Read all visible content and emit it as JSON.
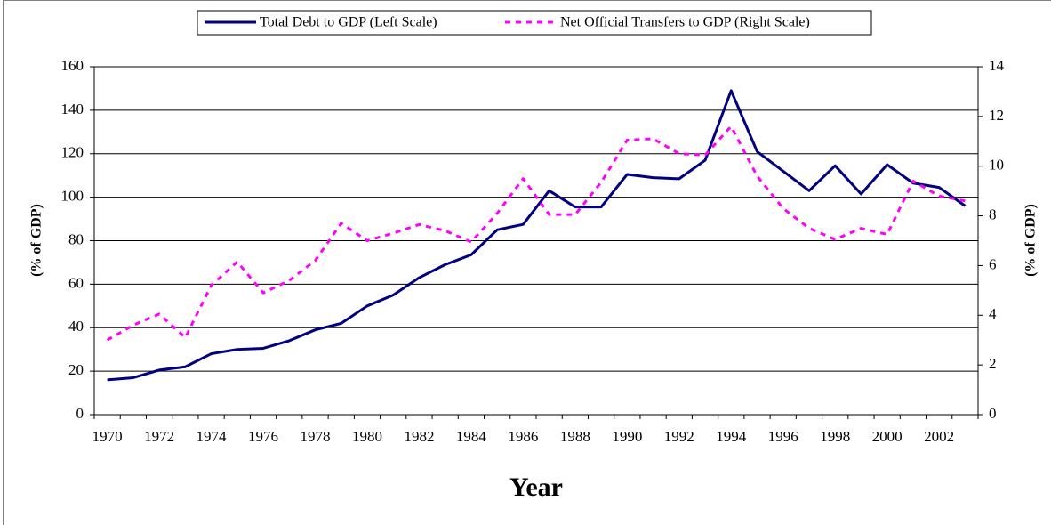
{
  "chart_data": {
    "type": "line",
    "x_label": "Year",
    "y_label": "(% of GDP)",
    "y2_label": "(% of GDP)",
    "categories": [
      "1970",
      null,
      "1972",
      null,
      "1974",
      null,
      "1976",
      null,
      "1978",
      null,
      "1980",
      null,
      "1982",
      null,
      "1984",
      null,
      "1986",
      null,
      "1988",
      null,
      "1990",
      null,
      "1992",
      null,
      "1994",
      null,
      "1996",
      null,
      "1998",
      null,
      "2000",
      null,
      "2002",
      null
    ],
    "series": [
      {
        "name": "Total Debt to GDP (Left Scale)",
        "color": "#000080",
        "dash": false,
        "values": [
          16,
          17,
          20.5,
          22,
          28,
          30,
          30.5,
          34,
          39,
          42,
          50,
          55,
          63,
          69,
          73.5,
          85,
          87.5,
          103,
          95.5,
          95.5,
          110.5,
          109,
          108.5,
          117,
          149,
          121,
          112,
          103,
          114.5,
          101.5,
          115,
          106.5,
          104.5,
          96
        ]
      },
      {
        "name": "Net Official Transfers to GDP (Right Scale)",
        "color": "#ff00ff",
        "dash": true,
        "axis": "y2",
        "values": [
          3.0,
          3.6,
          4.05,
          3.1,
          5.2,
          6.15,
          4.9,
          5.4,
          6.2,
          7.7,
          7.0,
          7.3,
          7.65,
          7.4,
          6.95,
          8.1,
          9.5,
          8.05,
          8.05,
          9.35,
          11.05,
          11.1,
          10.5,
          10.45,
          11.6,
          9.6,
          8.3,
          7.5,
          7.05,
          7.5,
          7.25,
          9.4,
          8.8,
          8.6
        ]
      }
    ],
    "ylim": [
      0,
      160
    ],
    "yticks": [
      0,
      20,
      40,
      60,
      80,
      100,
      120,
      140,
      160
    ],
    "y2lim": [
      0,
      14
    ],
    "y2ticks": [
      0,
      2,
      4,
      6,
      8,
      10,
      12,
      14
    ],
    "grid": true,
    "legend": "top"
  }
}
